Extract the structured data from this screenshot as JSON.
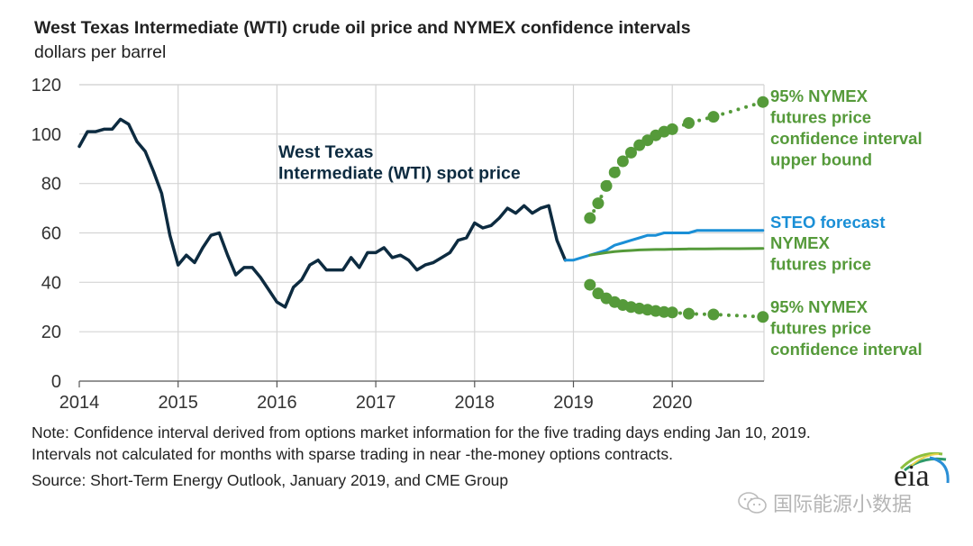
{
  "header": {
    "title": "West Texas Intermediate (WTI) crude oil price and NYMEX confidence intervals",
    "subtitle": "dollars per barrel"
  },
  "footer": {
    "note": "Note: Confidence interval derived from options market information for the five trading days ending Jan 10, 2019. Intervals not calculated for months with sparse trading in near -the-money options contracts.",
    "source": "Source: Short-Term Energy Outlook, January 2019, and CME Group",
    "logo_text": "eia",
    "watermark": "国际能源小数据",
    "watermark_icon": "wechat-icon"
  },
  "colors": {
    "wti": "#0d2b40",
    "steo": "#1a8fd6",
    "nymex": "#559a3a",
    "grid": "#d4d4d4",
    "axis": "#555555"
  },
  "chart_data": {
    "type": "line",
    "title": "West Texas Intermediate (WTI) crude oil price and NYMEX confidence intervals",
    "ylabel": "dollars per barrel",
    "xlabel": "",
    "ylim": [
      0,
      120
    ],
    "xlim": [
      2014.0,
      2020.917
    ],
    "yticks": [
      "0",
      "20",
      "40",
      "60",
      "80",
      "100",
      "120"
    ],
    "ytick_values": [
      0,
      20,
      40,
      60,
      80,
      100,
      120
    ],
    "xticks": [
      "2014",
      "2015",
      "2016",
      "2017",
      "2018",
      "2019",
      "2020"
    ],
    "xtick_values": [
      2014,
      2015,
      2016,
      2017,
      2018,
      2019,
      2020
    ],
    "grid": true,
    "series": [
      {
        "name": "West Texas Intermediate (WTI) spot price",
        "label_lines": [
          "West Texas",
          "Intermediate (WTI) spot price"
        ],
        "color_key": "wti",
        "x": [
          2014.0,
          2014.083,
          2014.167,
          2014.25,
          2014.333,
          2014.417,
          2014.5,
          2014.583,
          2014.667,
          2014.75,
          2014.833,
          2014.917,
          2015.0,
          2015.083,
          2015.167,
          2015.25,
          2015.333,
          2015.417,
          2015.5,
          2015.583,
          2015.667,
          2015.75,
          2015.833,
          2015.917,
          2016.0,
          2016.083,
          2016.167,
          2016.25,
          2016.333,
          2016.417,
          2016.5,
          2016.583,
          2016.667,
          2016.75,
          2016.833,
          2016.917,
          2017.0,
          2017.083,
          2017.167,
          2017.25,
          2017.333,
          2017.417,
          2017.5,
          2017.583,
          2017.667,
          2017.75,
          2017.833,
          2017.917,
          2018.0,
          2018.083,
          2018.167,
          2018.25,
          2018.333,
          2018.417,
          2018.5,
          2018.583,
          2018.667,
          2018.75,
          2018.833,
          2018.917
        ],
        "values": [
          95,
          101,
          101,
          102,
          102,
          106,
          104,
          97,
          93,
          85,
          76,
          59,
          47,
          51,
          48,
          54,
          59,
          60,
          51,
          43,
          46,
          46,
          42,
          37,
          32,
          30,
          38,
          41,
          47,
          49,
          45,
          45,
          45,
          50,
          46,
          52,
          52,
          54,
          50,
          51,
          49,
          45,
          47,
          48,
          50,
          52,
          57,
          58,
          64,
          62,
          63,
          66,
          70,
          68,
          71,
          68,
          70,
          71,
          57,
          49
        ]
      },
      {
        "name": "STEO forecast",
        "color_key": "steo",
        "x": [
          2018.917,
          2019.0,
          2019.083,
          2019.167,
          2019.25,
          2019.333,
          2019.417,
          2019.5,
          2019.583,
          2019.667,
          2019.75,
          2019.833,
          2019.917,
          2020.0,
          2020.083,
          2020.167,
          2020.25,
          2020.333,
          2020.417,
          2020.5,
          2020.583,
          2020.667,
          2020.75,
          2020.833,
          2020.917
        ],
        "values": [
          49,
          49,
          50,
          51,
          52,
          53,
          55,
          56,
          57,
          58,
          59,
          59,
          60,
          60,
          60,
          60,
          61,
          61,
          61,
          61,
          61,
          61,
          61,
          61,
          61
        ]
      },
      {
        "name": "NYMEX futures price",
        "label_lines": [
          "NYMEX",
          "futures price"
        ],
        "color_key": "nymex",
        "x": [
          2019.167,
          2019.25,
          2019.333,
          2019.417,
          2019.5,
          2019.583,
          2019.667,
          2019.75,
          2019.833,
          2019.917,
          2020.0,
          2020.167,
          2020.333,
          2020.5,
          2020.667,
          2020.917
        ],
        "values": [
          51,
          51.5,
          52,
          52.4,
          52.7,
          52.9,
          53.1,
          53.2,
          53.3,
          53.3,
          53.4,
          53.5,
          53.5,
          53.6,
          53.6,
          53.7
        ]
      },
      {
        "name": "95% NYMEX futures price confidence interval upper bound",
        "label_lines": [
          "95% NYMEX",
          "futures price",
          "confidence interval",
          "upper bound"
        ],
        "color_key": "nymex",
        "style": "dotted-markers",
        "x": [
          2019.167,
          2019.25,
          2019.333,
          2019.417,
          2019.5,
          2019.583,
          2019.667,
          2019.75,
          2019.833,
          2019.917,
          2020.0,
          2020.167,
          2020.417,
          2020.917
        ],
        "values": [
          66,
          72,
          79,
          84.5,
          89,
          92.5,
          95.5,
          97.5,
          99.5,
          101,
          102,
          104.5,
          107,
          113
        ]
      },
      {
        "name": "95% NYMEX futures price confidence interval lower bound",
        "label_lines": [
          "95% NYMEX",
          "futures price",
          "confidence interval"
        ],
        "color_key": "nymex",
        "style": "dotted-markers",
        "x": [
          2019.167,
          2019.25,
          2019.333,
          2019.417,
          2019.5,
          2019.583,
          2019.667,
          2019.75,
          2019.833,
          2019.917,
          2020.0,
          2020.167,
          2020.417,
          2020.917
        ],
        "values": [
          39,
          35.5,
          33.5,
          32,
          30.8,
          30,
          29.4,
          28.9,
          28.4,
          28,
          27.8,
          27.3,
          27,
          26
        ]
      }
    ]
  }
}
